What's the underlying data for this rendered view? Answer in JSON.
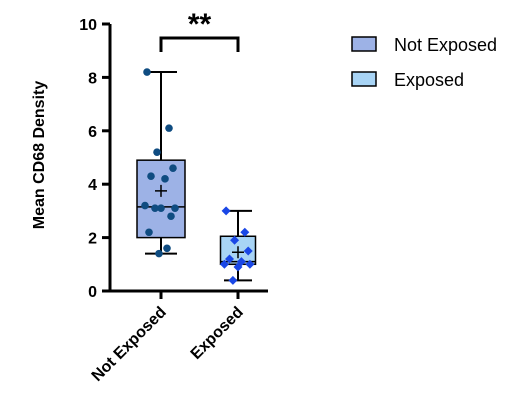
{
  "chart_data": {
    "type": "box",
    "ylabel": "Mean CD68 Density",
    "xlabel": "",
    "ylim": [
      0,
      10
    ],
    "yticks": [
      0,
      2,
      4,
      6,
      8,
      10
    ],
    "categories": [
      "Not Exposed",
      "Exposed"
    ],
    "series": [
      {
        "name": "Not Exposed",
        "color": "#9db2e6",
        "point_color": "#0f4c81",
        "point_shape": "circle",
        "min": 1.4,
        "q1": 2.0,
        "median": 3.15,
        "q3": 4.9,
        "max": 8.2,
        "mean": 3.75,
        "points": [
          8.2,
          6.1,
          5.2,
          4.6,
          4.3,
          4.2,
          3.2,
          3.1,
          3.1,
          3.1,
          2.8,
          2.2,
          1.6,
          1.4
        ]
      },
      {
        "name": "Exposed",
        "color": "#a8d4f5",
        "point_color": "#1a47e6",
        "point_shape": "diamond",
        "min": 0.4,
        "q1": 1.0,
        "median": 1.1,
        "q3": 2.05,
        "max": 3.0,
        "mean": 1.45,
        "points": [
          3.0,
          2.2,
          1.9,
          1.5,
          1.2,
          1.1,
          1.0,
          1.0,
          0.9,
          0.4
        ]
      }
    ],
    "significance": {
      "label": "**",
      "between": [
        "Not Exposed",
        "Exposed"
      ]
    },
    "legend": {
      "position": "top-right",
      "entries": [
        "Not Exposed",
        "Exposed"
      ]
    },
    "grid": false
  }
}
